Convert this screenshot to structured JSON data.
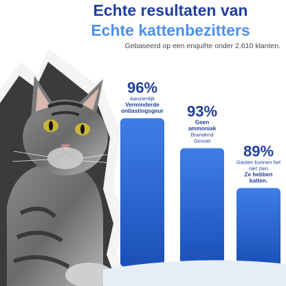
{
  "header": {
    "title_line1": "Echte resultaten van",
    "title_line2": "Echte kattenbezitters",
    "subtitle": "Gebaseerd op een enquête onder 2.610 klanten."
  },
  "colors": {
    "title_dark": "#1f3f9e",
    "title_light": "#4d8ff0",
    "bar_top": "#3f7ee6",
    "bar_bottom": "#1b4fb8"
  },
  "chart_data": {
    "type": "bar",
    "categories": [
      "Aanzienlijk Verminderde ontlastingsgeur",
      "Geen ammoniak Brandend Gevoel",
      "Gasten kunnen het niet zien Ze hebben katten."
    ],
    "values": [
      96,
      93,
      89
    ],
    "value_labels": [
      "96%",
      "93%",
      "89%"
    ],
    "captions": [
      [
        {
          "text": "Aanzienlijk",
          "bold": false
        },
        {
          "text": "Verminderde",
          "bold": true
        },
        {
          "text": "ontlastingsgeur",
          "bold": true
        }
      ],
      [
        {
          "text": "Geen",
          "bold": true
        },
        {
          "text": "ammoniak",
          "bold": true
        },
        {
          "text": "Brandend",
          "bold": false
        },
        {
          "text": "Gevoel",
          "bold": false
        }
      ],
      [
        {
          "text": "Gasten kunnen het",
          "bold": false
        },
        {
          "text": "niet zien",
          "bold": false
        },
        {
          "text": "Ze hebben",
          "bold": true
        },
        {
          "text": "katten.",
          "bold": true
        }
      ]
    ],
    "ylim": [
      0,
      100
    ],
    "grid": false,
    "legend": "none"
  }
}
